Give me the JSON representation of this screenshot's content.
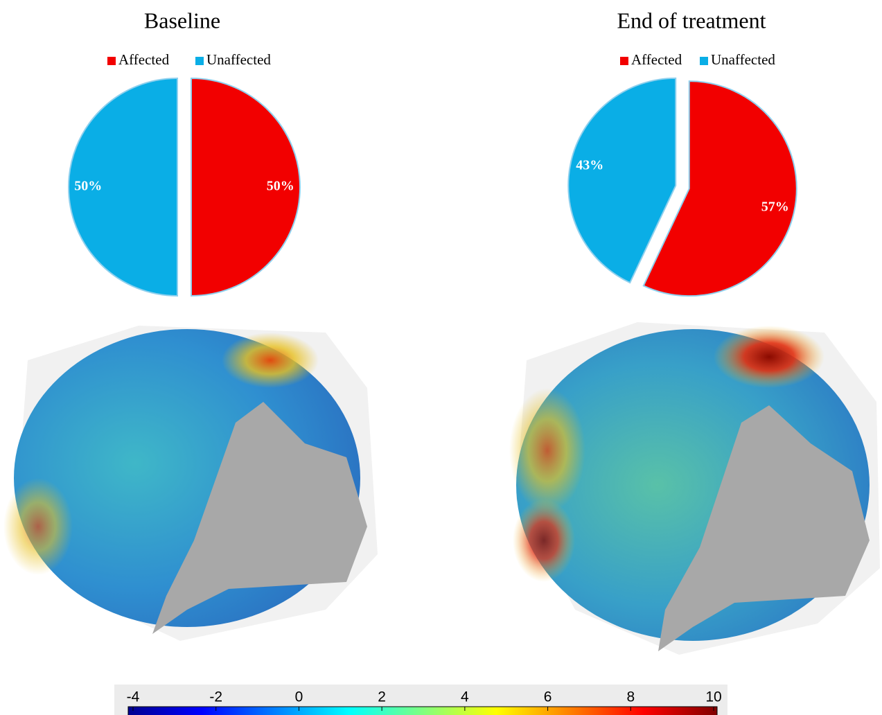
{
  "chart_data": [
    {
      "type": "pie",
      "title": "Baseline",
      "categories": [
        "Affected",
        "Unaffected"
      ],
      "values": [
        50,
        50
      ],
      "value_labels": [
        "50%",
        "50%"
      ],
      "colors": [
        "#f20000",
        "#0aaee6"
      ]
    },
    {
      "type": "pie",
      "title": "End of treatment",
      "categories": [
        "Affected",
        "Unaffected"
      ],
      "values": [
        57,
        43
      ],
      "value_labels": [
        "57%",
        "43%"
      ],
      "colors": [
        "#f20000",
        "#0aaee6"
      ]
    },
    {
      "type": "colorbar",
      "colormap": "jet",
      "xlim": [
        -4,
        10
      ],
      "xticks": [
        -4,
        -2,
        0,
        2,
        4,
        6,
        8,
        10
      ]
    }
  ]
}
